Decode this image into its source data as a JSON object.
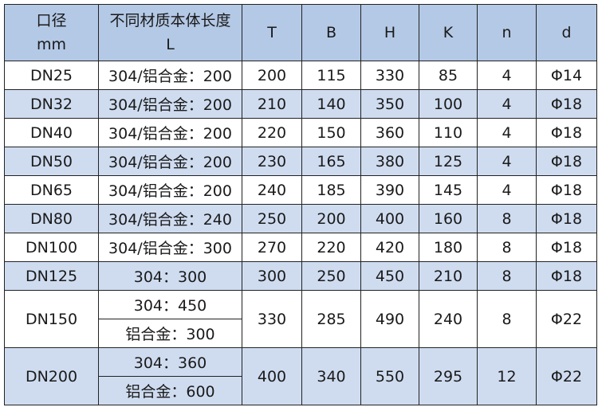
{
  "header": {
    "diameter": [
      "口径",
      "mm"
    ],
    "length": [
      "不同材质本体长度",
      "L"
    ],
    "cols": [
      "T",
      "B",
      "H",
      "K",
      "n",
      "d"
    ]
  },
  "rows": [
    {
      "dn": "DN25",
      "l": [
        "304/铝合金：200"
      ],
      "t": "200",
      "b": "115",
      "h": "330",
      "k": "85",
      "n": "4",
      "d": "Φ14"
    },
    {
      "dn": "DN32",
      "l": [
        "304/铝合金：200"
      ],
      "t": "210",
      "b": "140",
      "h": "350",
      "k": "100",
      "n": "4",
      "d": "Φ18"
    },
    {
      "dn": "DN40",
      "l": [
        "304/铝合金：200"
      ],
      "t": "220",
      "b": "150",
      "h": "360",
      "k": "110",
      "n": "4",
      "d": "Φ18"
    },
    {
      "dn": "DN50",
      "l": [
        "304/铝合金：200"
      ],
      "t": "230",
      "b": "165",
      "h": "380",
      "k": "125",
      "n": "4",
      "d": "Φ18"
    },
    {
      "dn": "DN65",
      "l": [
        "304/铝合金：200"
      ],
      "t": "240",
      "b": "185",
      "h": "390",
      "k": "145",
      "n": "4",
      "d": "Φ18"
    },
    {
      "dn": "DN80",
      "l": [
        "304/铝合金：240"
      ],
      "t": "250",
      "b": "200",
      "h": "400",
      "k": "160",
      "n": "8",
      "d": "Φ18"
    },
    {
      "dn": "DN100",
      "l": [
        "304/铝合金：300"
      ],
      "t": "270",
      "b": "220",
      "h": "420",
      "k": "180",
      "n": "8",
      "d": "Φ18"
    },
    {
      "dn": "DN125",
      "l": [
        "304：300"
      ],
      "t": "300",
      "b": "250",
      "h": "450",
      "k": "210",
      "n": "8",
      "d": "Φ18"
    },
    {
      "dn": "DN150",
      "l": [
        "304：450",
        "铝合金：300"
      ],
      "t": "330",
      "b": "285",
      "h": "490",
      "k": "240",
      "n": "8",
      "d": "Φ22"
    },
    {
      "dn": "DN200",
      "l": [
        "304：360",
        "铝合金：600"
      ],
      "t": "400",
      "b": "340",
      "h": "550",
      "k": "295",
      "n": "12",
      "d": "Φ22"
    }
  ],
  "colors": {
    "header": "#b4c9e6",
    "alt_row": "#cfdcf0",
    "border": "#222222"
  }
}
